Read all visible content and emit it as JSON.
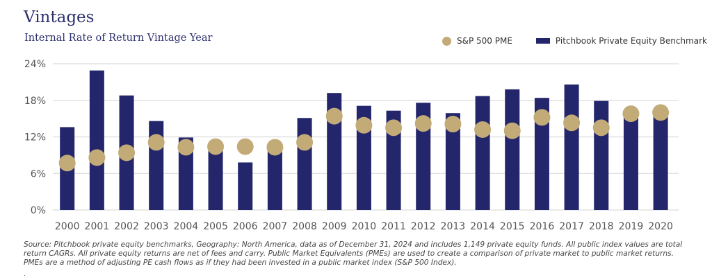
{
  "header": {
    "title": "Vintages",
    "subtitle": "Internal Rate of Return Vintage Year"
  },
  "legend": {
    "series_dot": "S&P 500 PME",
    "series_bar": "Pitchbook Private Equity Benchmark"
  },
  "colors": {
    "bar": "#23266b",
    "dot": "#c3ab78",
    "grid": "#dcdcdc",
    "text": "#555555",
    "title": "#2b2f6e"
  },
  "chart_data": {
    "type": "bar",
    "title": "Vintages",
    "subtitle": "Internal Rate of Return Vintage Year",
    "xlabel": "",
    "ylabel": "",
    "ylim": [
      0,
      24
    ],
    "yticks": [
      0,
      6,
      12,
      18,
      24
    ],
    "ytick_labels": [
      "0%",
      "6%",
      "12%",
      "18%",
      "24%"
    ],
    "grid": true,
    "legend_position": "top-right",
    "categories": [
      "2000",
      "2001",
      "2002",
      "2003",
      "2004",
      "2005",
      "2006",
      "2007",
      "2008",
      "2009",
      "2010",
      "2011",
      "2012",
      "2013",
      "2014",
      "2015",
      "2016",
      "2017",
      "2018",
      "2019",
      "2020"
    ],
    "series": [
      {
        "name": "Pitchbook Private Equity Benchmark",
        "type": "bar",
        "values": [
          13.6,
          22.9,
          18.8,
          14.6,
          11.9,
          10.1,
          7.8,
          10.0,
          15.1,
          19.2,
          17.1,
          16.3,
          17.6,
          15.9,
          18.7,
          19.8,
          18.4,
          20.6,
          17.9,
          15.5,
          15.6
        ]
      },
      {
        "name": "S&P 500 PME",
        "type": "scatter",
        "values": [
          7.7,
          8.6,
          9.4,
          11.1,
          10.3,
          10.4,
          10.4,
          10.3,
          11.1,
          15.4,
          13.9,
          13.5,
          14.2,
          14.1,
          13.2,
          13.0,
          15.2,
          14.3,
          13.5,
          15.8,
          16.0
        ]
      }
    ]
  },
  "footnote": {
    "text": "Source: Pitchbook private equity benchmarks, Geography: North America, data as of December 31, 2024 and includes 1,149 private equity funds. All public index values are total return CAGRs. All private equity returns are net of fees and carry. Public Market Equivalents (PMEs) are used to create a comparison of private market to public market returns. PMEs are a method of adjusting PE cash flows as if they had been invested in a public market index (S&P 500 Index).",
    "trailing": "."
  }
}
